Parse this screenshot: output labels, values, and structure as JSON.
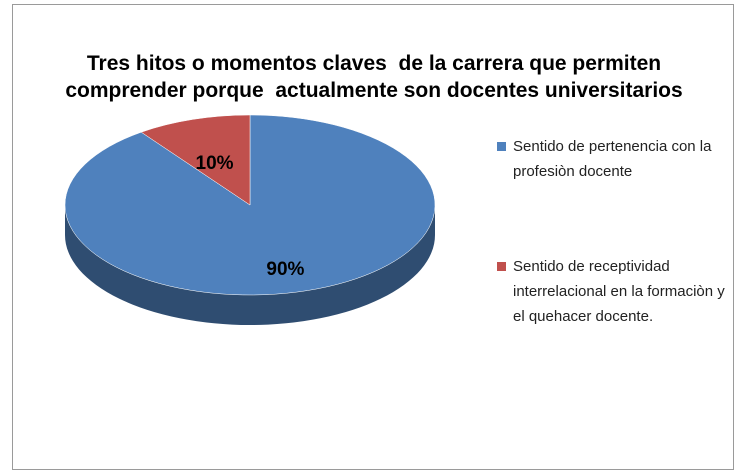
{
  "chart_data": {
    "type": "pie",
    "title": "Tres hitos o momentos claves  de la carrera que permiten comprender porque  actualmente son docentes universitarios",
    "categories": [
      "Sentido de pertenencia con la profesiòn docente",
      "Sentido de receptividad interrelacional en la formaciòn y el quehacer docente."
    ],
    "values": [
      90,
      10
    ],
    "value_labels": [
      "90%",
      "10%"
    ],
    "colors": [
      "#4f81bd",
      "#c0504d"
    ],
    "legend": "right"
  }
}
